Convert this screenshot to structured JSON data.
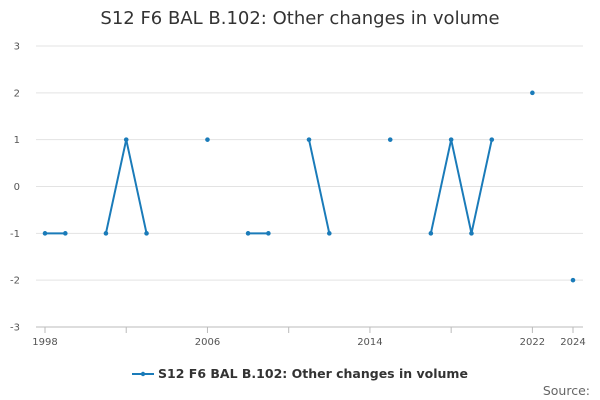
{
  "chart_data": {
    "type": "line",
    "title": "S12 F6 BAL B.102: Other changes in volume",
    "x_ticks": [
      "1998",
      "2006",
      "2014",
      "2022",
      "2024"
    ],
    "y_ticks": [
      "3",
      "2",
      "1",
      "0",
      "-1",
      "-2",
      "-3"
    ],
    "ylim": [
      -3,
      3
    ],
    "xlim": [
      1998,
      2024
    ],
    "grid": true,
    "legend_position": "bottom",
    "series": [
      {
        "name": "S12 F6 BAL B.102: Other changes in volume",
        "color": "#1a7bb9",
        "x": [
          1998,
          1999,
          2000,
          2001,
          2002,
          2003,
          2004,
          2005,
          2006,
          2007,
          2008,
          2009,
          2010,
          2011,
          2012,
          2013,
          2014,
          2015,
          2016,
          2017,
          2018,
          2019,
          2020,
          2021,
          2022,
          2023,
          2024
        ],
        "y": [
          -1,
          -1,
          null,
          -1,
          1,
          -1,
          null,
          null,
          1,
          null,
          -1,
          -1,
          null,
          1,
          -1,
          null,
          null,
          1,
          null,
          -1,
          1,
          -1,
          1,
          null,
          2,
          null,
          -2
        ]
      }
    ]
  },
  "legend": {
    "label": "S12 F6 BAL B.102: Other changes in volume"
  },
  "source": {
    "label": "Source:"
  }
}
